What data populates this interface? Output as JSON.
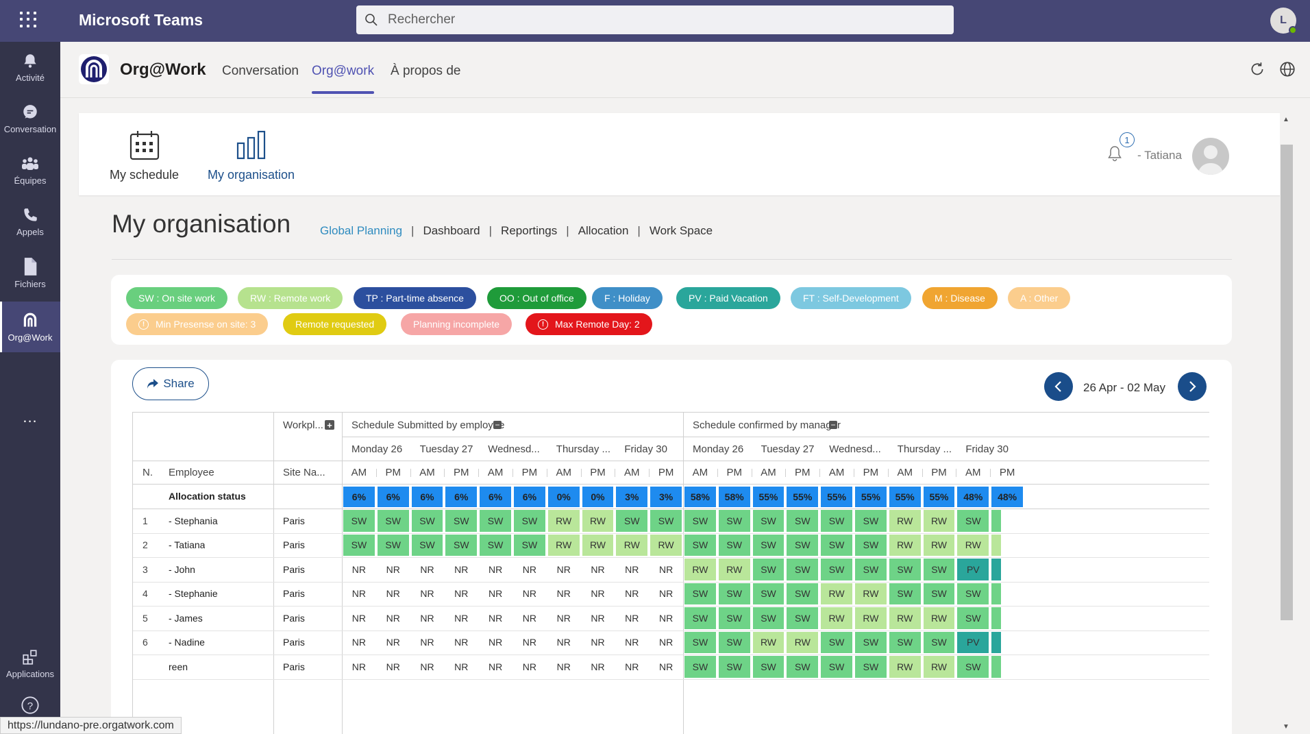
{
  "app": {
    "title": "Microsoft Teams",
    "user_initial": "L"
  },
  "search": {
    "placeholder": "Rechercher"
  },
  "rail": [
    {
      "id": "activity",
      "label": "Activité",
      "icon": "bell-icon"
    },
    {
      "id": "chat",
      "label": "Conversation",
      "icon": "chat-icon"
    },
    {
      "id": "teams",
      "label": "Équipes",
      "icon": "teams-icon"
    },
    {
      "id": "calls",
      "label": "Appels",
      "icon": "phone-icon"
    },
    {
      "id": "files",
      "label": "Fichiers",
      "icon": "file-icon"
    },
    {
      "id": "orgwork",
      "label": "Org@Work",
      "icon": "orgwork-icon",
      "active": true
    }
  ],
  "rail_bottom": {
    "apps_label": "Applications",
    "more": "..."
  },
  "app_header": {
    "name": "Org@Work",
    "tabs": [
      {
        "label": "Conversation",
        "active": false
      },
      {
        "label": "Org@work",
        "active": true
      },
      {
        "label": "À propos de",
        "active": false
      }
    ]
  },
  "top_nav": {
    "my_schedule": "My schedule",
    "my_organisation": "My organisation",
    "notification_count": "1",
    "user_name": "- Tatiana"
  },
  "page": {
    "title": "My organisation",
    "subnav": [
      "Global Planning",
      "Dashboard",
      "Reportings",
      "Allocation",
      "Work Space"
    ],
    "subnav_active": "Global Planning"
  },
  "legend": {
    "row1": [
      {
        "label": "SW : On site work",
        "color": "#69cf7e"
      },
      {
        "label": "RW : Remote work",
        "color": "#b6e28e"
      },
      {
        "label": "TP : Part-time absence",
        "color": "#2c4f9e"
      },
      {
        "label": "OO : Out of office",
        "color": "#1f9b3a"
      },
      {
        "label": "F : Holiday",
        "color": "#3f8fc7"
      },
      {
        "label": "PV : Paid Vacation",
        "color": "#2aa69b"
      },
      {
        "label": "FT : Self-Development",
        "color": "#7dc8e0"
      },
      {
        "label": "M : Disease",
        "color": "#f0a531"
      },
      {
        "label": "A : Other",
        "color": "#fbcd8d"
      }
    ],
    "row2": [
      {
        "label": "Min Presense on site: 3",
        "color": "#fbcd8d",
        "icon": true
      },
      {
        "label": "Remote requested",
        "color": "#e0cb12"
      },
      {
        "label": "Planning incomplete",
        "color": "#f6a6a6"
      },
      {
        "label": "Max Remote Day: 2",
        "color": "#e3161b",
        "icon": true
      }
    ]
  },
  "toolbar": {
    "share_label": "Share",
    "date_range": "26 Apr - 02 May"
  },
  "table": {
    "headers": {
      "workplace": "Workpl...",
      "group1": "Schedule Submitted by employee",
      "group2": "Schedule confirmed by manager",
      "n": "N.",
      "employee": "Employee",
      "site": "Site Na...",
      "am": "AM",
      "pm": "PM"
    },
    "days": [
      "Monday 26",
      "Tuesday 27",
      "Wednesd...",
      "Thursday ...",
      "Friday 30"
    ],
    "allocation_label": "Allocation status",
    "allocation": [
      "6%",
      "6%",
      "6%",
      "6%",
      "6%",
      "6%",
      "0%",
      "0%",
      "3%",
      "3%",
      "58%",
      "58%",
      "55%",
      "55%",
      "55%",
      "55%",
      "55%",
      "55%",
      "48%",
      "48%"
    ],
    "rows": [
      {
        "n": "1",
        "name": "- Stephania",
        "site": "Paris",
        "cells": [
          "SW",
          "SW",
          "SW",
          "SW",
          "SW",
          "SW",
          "RW",
          "RW",
          "SW",
          "SW",
          "SW",
          "SW",
          "SW",
          "SW",
          "SW",
          "SW",
          "RW",
          "RW",
          "SW",
          ""
        ]
      },
      {
        "n": "2",
        "name": "- Tatiana",
        "site": "Paris",
        "cells": [
          "SW",
          "SW",
          "SW",
          "SW",
          "SW",
          "SW",
          "RW",
          "RW",
          "RW",
          "RW",
          "SW",
          "SW",
          "SW",
          "SW",
          "SW",
          "SW",
          "RW",
          "RW",
          "RW",
          ""
        ]
      },
      {
        "n": "3",
        "name": "- John",
        "site": "Paris",
        "cells": [
          "NR",
          "NR",
          "NR",
          "NR",
          "NR",
          "NR",
          "NR",
          "NR",
          "NR",
          "NR",
          "RW",
          "RW",
          "SW",
          "SW",
          "SW",
          "SW",
          "SW",
          "SW",
          "PV",
          ""
        ]
      },
      {
        "n": "4",
        "name": "- Stephanie",
        "site": "Paris",
        "cells": [
          "NR",
          "NR",
          "NR",
          "NR",
          "NR",
          "NR",
          "NR",
          "NR",
          "NR",
          "NR",
          "SW",
          "SW",
          "SW",
          "SW",
          "RW",
          "RW",
          "SW",
          "SW",
          "SW",
          ""
        ]
      },
      {
        "n": "5",
        "name": "- James",
        "site": "Paris",
        "cells": [
          "NR",
          "NR",
          "NR",
          "NR",
          "NR",
          "NR",
          "NR",
          "NR",
          "NR",
          "NR",
          "SW",
          "SW",
          "SW",
          "SW",
          "RW",
          "RW",
          "RW",
          "RW",
          "SW",
          ""
        ]
      },
      {
        "n": "6",
        "name": "- Nadine",
        "site": "Paris",
        "cells": [
          "NR",
          "NR",
          "NR",
          "NR",
          "NR",
          "NR",
          "NR",
          "NR",
          "NR",
          "NR",
          "SW",
          "SW",
          "RW",
          "RW",
          "SW",
          "SW",
          "SW",
          "SW",
          "PV",
          ""
        ]
      },
      {
        "n": "",
        "name": "reen",
        "site": "Paris",
        "cells": [
          "NR",
          "NR",
          "NR",
          "NR",
          "NR",
          "NR",
          "NR",
          "NR",
          "NR",
          "NR",
          "SW",
          "SW",
          "SW",
          "SW",
          "SW",
          "SW",
          "RW",
          "RW",
          "SW",
          ""
        ]
      }
    ],
    "last_col_fill": [
      "SW",
      "RW",
      "PV",
      "SW",
      "SW",
      "PV",
      "SW"
    ]
  },
  "colors": {
    "SW": "#6ed387",
    "RW": "#b9e69a",
    "PV": "#2aa69b",
    "pct": "#1e8bef",
    "teams_purple": "#464775"
  },
  "status_url": "https://lundano-pre.orgatwork.com"
}
